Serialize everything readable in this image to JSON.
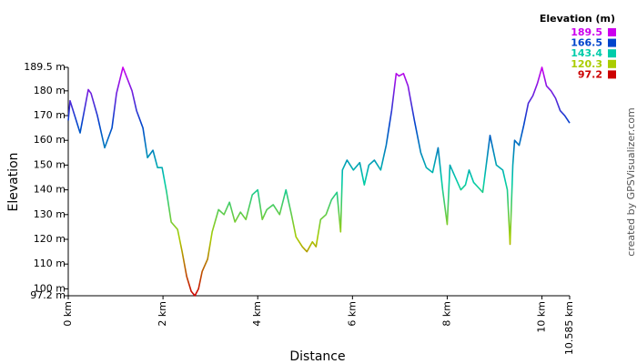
{
  "chart_data": {
    "type": "line",
    "y_label": "Elevation",
    "x_label": "Distance",
    "credit": "created by GPSVisualizer.com",
    "legend_title": "Elevation (m)",
    "color_scale": [
      {
        "value": 189.5,
        "color": "#cc00ee"
      },
      {
        "value": 166.5,
        "color": "#0044cc"
      },
      {
        "value": 143.4,
        "color": "#00ccaa"
      },
      {
        "value": 120.3,
        "color": "#aacc00"
      },
      {
        "value": 97.2,
        "color": "#cc0000"
      }
    ],
    "xlim": [
      0,
      10.585
    ],
    "ylim": [
      97.2,
      189.5
    ],
    "xticks": [
      {
        "value": 0,
        "label": "0 km"
      },
      {
        "value": 2,
        "label": "2 km"
      },
      {
        "value": 4,
        "label": "4 km"
      },
      {
        "value": 6,
        "label": "6 km"
      },
      {
        "value": 8,
        "label": "8 km"
      },
      {
        "value": 10,
        "label": "10 km"
      },
      {
        "value": 10.585,
        "label": "10.585 km"
      }
    ],
    "yticks": [
      {
        "value": 97.2,
        "label": "97.2 m"
      },
      {
        "value": 100,
        "label": "100 m"
      },
      {
        "value": 110,
        "label": "110 m"
      },
      {
        "value": 120,
        "label": "120 m"
      },
      {
        "value": 130,
        "label": "130 m"
      },
      {
        "value": 140,
        "label": "140 m"
      },
      {
        "value": 150,
        "label": "150 m"
      },
      {
        "value": 160,
        "label": "160 m"
      },
      {
        "value": 170,
        "label": "170 m"
      },
      {
        "value": 180,
        "label": "180 m"
      },
      {
        "value": 189.5,
        "label": "189.5 m"
      }
    ],
    "series": [
      {
        "x": [
          0,
          0.038,
          0.25,
          0.423,
          0.481,
          0.615,
          0.769,
          0.923,
          1.019,
          1.154,
          1.346,
          1.442,
          1.577,
          1.673,
          1.788,
          1.885,
          1.981,
          2.077,
          2.173,
          2.308,
          2.404,
          2.5,
          2.596,
          2.673,
          2.75,
          2.827,
          2.942,
          3.038,
          3.173,
          3.288,
          3.404,
          3.519,
          3.635,
          3.75,
          3.885,
          4.0,
          4.096,
          4.192,
          4.327,
          4.462,
          4.596,
          4.712,
          4.808,
          4.942,
          5.038,
          5.154,
          5.231,
          5.327,
          5.442,
          5.558,
          5.673,
          5.75,
          5.788,
          5.885,
          6.019,
          6.154,
          6.25,
          6.346,
          6.462,
          6.596,
          6.712,
          6.827,
          6.923,
          6.981,
          7.077,
          7.173,
          7.308,
          7.442,
          7.558,
          7.692,
          7.808,
          7.904,
          8.0,
          8.058,
          8.173,
          8.288,
          8.385,
          8.462,
          8.558,
          8.654,
          8.75,
          8.904,
          9.038,
          9.173,
          9.269,
          9.327,
          9.385,
          9.423,
          9.519,
          9.615,
          9.712,
          9.808,
          9.904,
          10.0,
          10.096,
          10.192,
          10.288,
          10.385,
          10.481,
          10.585
        ],
        "values": [
          168,
          176,
          163,
          180.5,
          179,
          170,
          157,
          165,
          179,
          189.5,
          180,
          172,
          165,
          153,
          156,
          149,
          149,
          139,
          127,
          124,
          115,
          105,
          99,
          97.2,
          100,
          107,
          112,
          123,
          132,
          130,
          135,
          127,
          131,
          128,
          138,
          140,
          128,
          132,
          134,
          130,
          140,
          130,
          121,
          117,
          115,
          119,
          117,
          128,
          130,
          136,
          139,
          123,
          148,
          152,
          148,
          151,
          142,
          150,
          152,
          148,
          158,
          172,
          187,
          186,
          187,
          182,
          168,
          155,
          149,
          147,
          157,
          140,
          126,
          150,
          145,
          140,
          142,
          148,
          143,
          141,
          139,
          162,
          150,
          148,
          140,
          118,
          150,
          160,
          158,
          166,
          175,
          178,
          183,
          189.5,
          182,
          180,
          177,
          172,
          170,
          167
        ]
      }
    ]
  }
}
